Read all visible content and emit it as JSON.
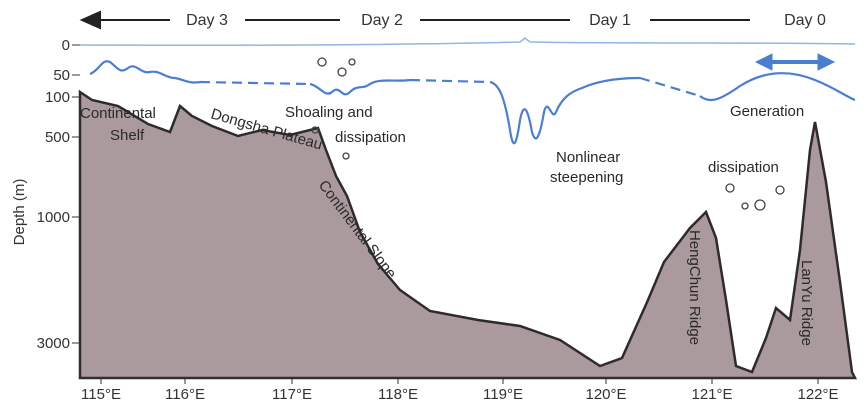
{
  "days": [
    "Day 3",
    "Day 2",
    "Day 1",
    "Day 0"
  ],
  "axis_title": "Depth (m)",
  "depth_ticks": [
    "0",
    "50",
    "100",
    "500",
    "1000",
    "3000"
  ],
  "lon_ticks": [
    "115°E",
    "116°E",
    "117°E",
    "118°E",
    "119°E",
    "120°E",
    "121°E",
    "122°E"
  ],
  "features": [
    "Continental",
    "Shelf",
    "Dongsha Plateau",
    "Continental Slope",
    "HengChun Ridge",
    "LanYu Ridge"
  ],
  "processes": [
    "Shoaling and",
    "dissipation",
    "Nonlinear",
    "steepening",
    "Generation",
    "dissipation"
  ]
}
